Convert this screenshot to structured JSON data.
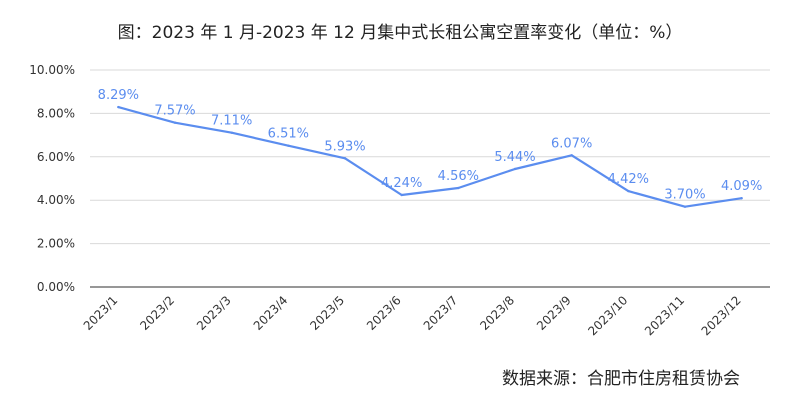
{
  "chart_data": {
    "type": "line",
    "title": "图：2023 年 1 月-2023 年 12 月集中式长租公寓空置率变化（单位：%）",
    "xlabel": "",
    "ylabel": "",
    "categories": [
      "2023/1",
      "2023/2",
      "2023/3",
      "2023/4",
      "2023/5",
      "2023/6",
      "2023/7",
      "2023/8",
      "2023/9",
      "2023/10",
      "2023/11",
      "2023/12"
    ],
    "series": [
      {
        "values": [
          8.29,
          7.57,
          7.11,
          6.51,
          5.93,
          4.24,
          4.56,
          5.44,
          6.07,
          4.42,
          3.7,
          4.09
        ],
        "data_labels": [
          "8.29%",
          "7.57%",
          "7.11%",
          "6.51%",
          "5.93%",
          "4.24%",
          "4.56%",
          "5.44%",
          "6.07%",
          "4.42%",
          "3.70%",
          "4.09%"
        ]
      }
    ],
    "ylim": [
      0,
      10
    ],
    "yticks": [
      0,
      2,
      4,
      6,
      8,
      10
    ],
    "ytick_labels": [
      "0.00%",
      "2.00%",
      "4.00%",
      "6.00%",
      "8.00%",
      "10.00%"
    ],
    "grid": true,
    "legend": "none",
    "colors": {
      "line": "#5b8def",
      "label": "#5b8def",
      "grid": "#d9d9d9",
      "axis": "#595959"
    }
  },
  "source_note": "数据来源：合肥市住房租赁协会"
}
